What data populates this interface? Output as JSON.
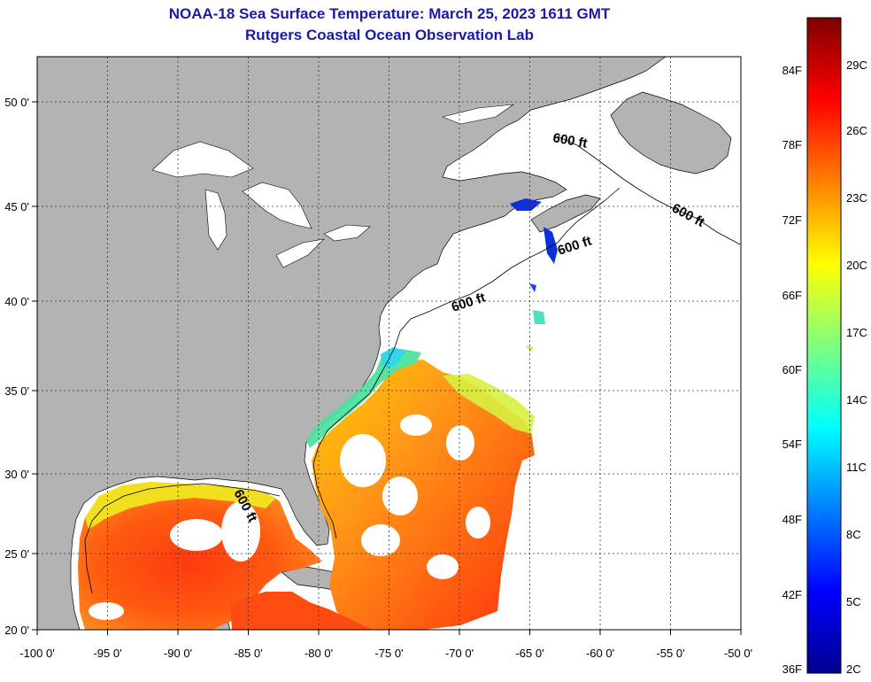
{
  "header": {
    "title": "NOAA-18 Sea Surface Temperature:  March 25, 2023 1611 GMT",
    "subtitle": "Rutgers Coastal Ocean Observation Lab"
  },
  "map": {
    "lon_labels": [
      "-100 0'",
      "-95 0'",
      "-90 0'",
      "-85 0'",
      "-80 0'",
      "-75 0'",
      "-70 0'",
      "-65 0'",
      "-60 0'",
      "-55 0'",
      "-50 0'"
    ],
    "lat_labels": [
      "50 0'",
      "45 0'",
      "40 0'",
      "35 0'",
      "30 0'",
      "25 0'",
      "20 0'"
    ],
    "contour_label": "600 ft",
    "colors": {
      "land": "#b3b3b3",
      "water_nodata": "#ffffff",
      "grid": "#333333"
    }
  },
  "colorbar": {
    "fahrenheit_labels": [
      "84F",
      "78F",
      "72F",
      "66F",
      "60F",
      "54F",
      "48F",
      "42F",
      "36F"
    ],
    "celsius_labels": [
      "29C",
      "26C",
      "23C",
      "20C",
      "17C",
      "14C",
      "11C",
      "8C",
      "5C",
      "2C"
    ]
  }
}
